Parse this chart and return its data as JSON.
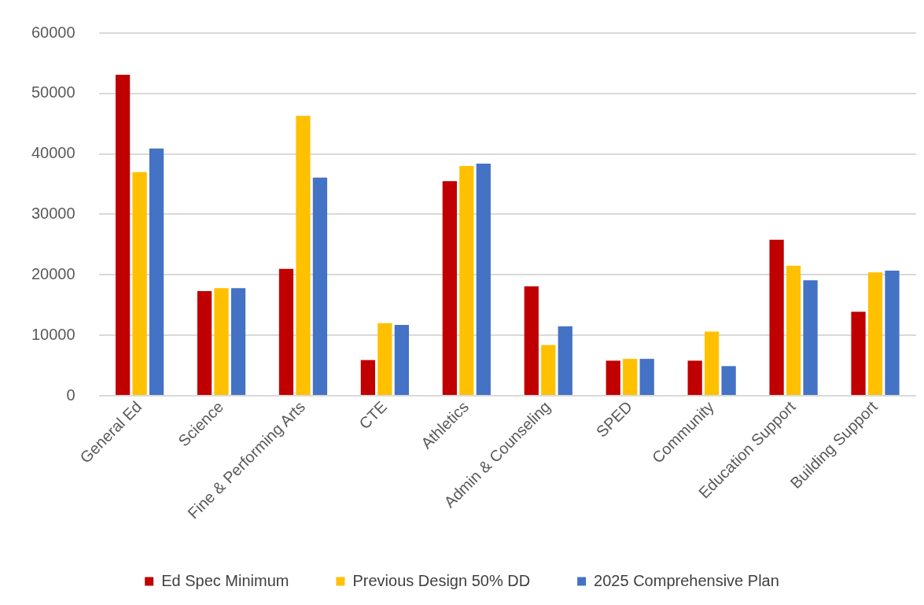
{
  "chart_data": {
    "type": "bar",
    "categories": [
      "General Ed",
      "Science",
      "Fine & Performing Arts",
      "CTE",
      "Athletics",
      "Admin & Counseling",
      "SPED",
      "Community",
      "Education Support",
      "Building Support"
    ],
    "series": [
      {
        "name": "Ed Spec Minimum",
        "color": "#c00000",
        "values": [
          53100,
          17300,
          21000,
          5900,
          35500,
          18100,
          5800,
          5800,
          25800,
          13900
        ]
      },
      {
        "name": "Previous Design 50% DD",
        "color": "#ffc000",
        "values": [
          37000,
          17800,
          46300,
          12000,
          38000,
          8400,
          6100,
          10600,
          21500,
          20400
        ]
      },
      {
        "name": "2025 Comprehensive Plan",
        "color": "#4472c4",
        "values": [
          40900,
          17800,
          36100,
          11700,
          38400,
          11500,
          6100,
          4900,
          19100,
          20700
        ]
      }
    ],
    "ylim": [
      0,
      60000
    ],
    "yticks": [
      0,
      10000,
      20000,
      30000,
      40000,
      50000,
      60000
    ],
    "grid": "y",
    "legend": "bottom"
  }
}
